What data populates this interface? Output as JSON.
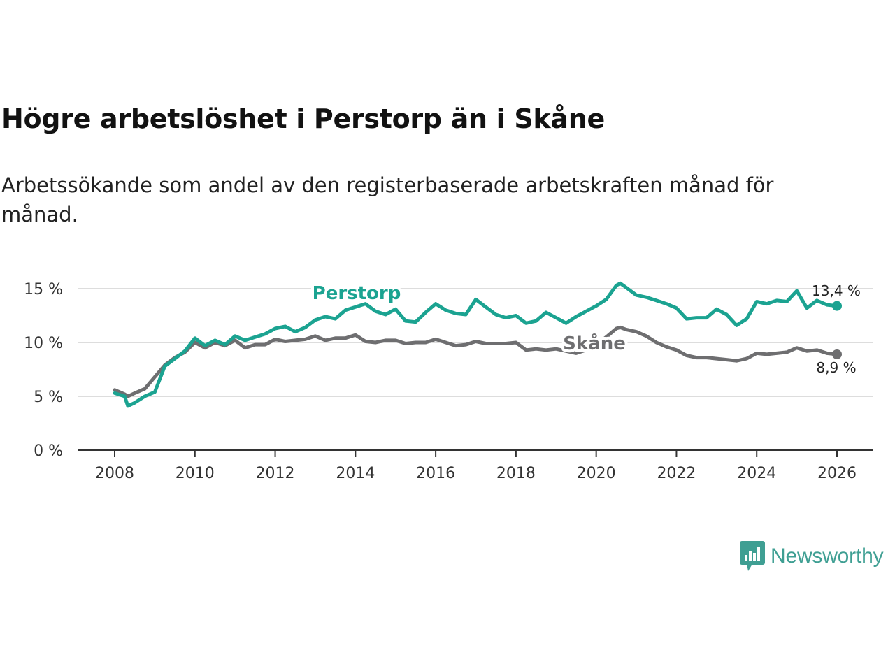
{
  "title": "Högre arbetslöshet i Perstorp än i Skåne",
  "subtitle": "Arbetssökande som andel av den registerbaserade arbetskraften månad för månad.",
  "brand": {
    "name": "Newsworthy",
    "icon": "newsworthy-logo-icon"
  },
  "colors": {
    "perstorp": "#1ba391",
    "skane": "#6e6e70",
    "grid": "#dddddd",
    "axis": "#333333"
  },
  "chart_data": {
    "type": "line",
    "title": "Högre arbetslöshet i Perstorp än i Skåne",
    "xlabel": "",
    "ylabel": "",
    "xlim": [
      2008,
      2026
    ],
    "ylim": [
      0,
      15
    ],
    "y_ticks": [
      0,
      5,
      10,
      15
    ],
    "y_tick_labels": [
      "0 %",
      "5 %",
      "10 %",
      "15 %"
    ],
    "x_ticks": [
      2008,
      2010,
      2012,
      2014,
      2016,
      2018,
      2020,
      2022,
      2024,
      2026
    ],
    "x_tick_labels": [
      "2008",
      "2010",
      "2012",
      "2014",
      "2016",
      "2018",
      "2020",
      "2022",
      "2024",
      "2026"
    ],
    "series": [
      {
        "name": "Perstorp",
        "color": "#1ba391",
        "end_label": "13,4 %",
        "x": [
          2008.0,
          2008.25,
          2008.33,
          2008.5,
          2008.75,
          2009.0,
          2009.25,
          2009.5,
          2009.75,
          2010.0,
          2010.25,
          2010.5,
          2010.75,
          2011.0,
          2011.25,
          2011.5,
          2011.75,
          2012.0,
          2012.25,
          2012.5,
          2012.75,
          2013.0,
          2013.25,
          2013.5,
          2013.75,
          2014.0,
          2014.25,
          2014.5,
          2014.75,
          2015.0,
          2015.25,
          2015.5,
          2015.75,
          2016.0,
          2016.25,
          2016.5,
          2016.75,
          2017.0,
          2017.25,
          2017.5,
          2017.75,
          2018.0,
          2018.25,
          2018.5,
          2018.75,
          2019.0,
          2019.25,
          2019.5,
          2019.75,
          2020.0,
          2020.25,
          2020.5,
          2020.6,
          2020.75,
          2021.0,
          2021.25,
          2021.5,
          2021.75,
          2022.0,
          2022.25,
          2022.5,
          2022.75,
          2023.0,
          2023.25,
          2023.5,
          2023.75,
          2024.0,
          2024.25,
          2024.5,
          2024.75,
          2025.0,
          2025.25,
          2025.5,
          2025.75,
          2026.0
        ],
        "values": [
          5.3,
          5.0,
          4.1,
          4.4,
          5.0,
          5.4,
          7.8,
          8.5,
          9.2,
          10.4,
          9.7,
          10.2,
          9.8,
          10.6,
          10.2,
          10.5,
          10.8,
          11.3,
          11.5,
          11.0,
          11.4,
          12.1,
          12.4,
          12.2,
          13.0,
          13.3,
          13.6,
          12.9,
          12.6,
          13.1,
          12.0,
          11.9,
          12.8,
          13.6,
          13.0,
          12.7,
          12.6,
          14.0,
          13.3,
          12.6,
          12.3,
          12.5,
          11.8,
          12.0,
          12.8,
          12.3,
          11.8,
          12.4,
          12.9,
          13.4,
          14.0,
          15.3,
          15.5,
          15.1,
          14.4,
          14.2,
          13.9,
          13.6,
          13.2,
          12.2,
          12.3,
          12.3,
          13.1,
          12.6,
          11.6,
          12.2,
          13.8,
          13.6,
          13.9,
          13.8,
          14.8,
          13.2,
          13.9,
          13.5,
          13.4
        ]
      },
      {
        "name": "Skåne",
        "color": "#6e6e70",
        "end_label": "8,9 %",
        "x": [
          2008.0,
          2008.25,
          2008.33,
          2008.5,
          2008.75,
          2009.0,
          2009.25,
          2009.5,
          2009.75,
          2010.0,
          2010.25,
          2010.5,
          2010.75,
          2011.0,
          2011.25,
          2011.5,
          2011.75,
          2012.0,
          2012.25,
          2012.5,
          2012.75,
          2013.0,
          2013.25,
          2013.5,
          2013.75,
          2014.0,
          2014.25,
          2014.5,
          2014.75,
          2015.0,
          2015.25,
          2015.5,
          2015.75,
          2016.0,
          2016.25,
          2016.5,
          2016.75,
          2017.0,
          2017.25,
          2017.5,
          2017.75,
          2018.0,
          2018.25,
          2018.5,
          2018.75,
          2019.0,
          2019.25,
          2019.5,
          2019.75,
          2020.0,
          2020.25,
          2020.5,
          2020.6,
          2020.75,
          2021.0,
          2021.25,
          2021.5,
          2021.75,
          2022.0,
          2022.25,
          2022.5,
          2022.75,
          2023.0,
          2023.25,
          2023.5,
          2023.75,
          2024.0,
          2024.25,
          2024.5,
          2024.75,
          2025.0,
          2025.25,
          2025.5,
          2025.75,
          2026.0
        ],
        "values": [
          5.6,
          5.2,
          5.0,
          5.3,
          5.7,
          6.8,
          7.9,
          8.6,
          9.1,
          10.0,
          9.5,
          10.0,
          9.7,
          10.2,
          9.5,
          9.8,
          9.8,
          10.3,
          10.1,
          10.2,
          10.3,
          10.6,
          10.2,
          10.4,
          10.4,
          10.7,
          10.1,
          10.0,
          10.2,
          10.2,
          9.9,
          10.0,
          10.0,
          10.3,
          10.0,
          9.7,
          9.8,
          10.1,
          9.9,
          9.9,
          9.9,
          10.0,
          9.3,
          9.4,
          9.3,
          9.4,
          9.2,
          9.0,
          9.3,
          9.8,
          10.5,
          11.3,
          11.4,
          11.2,
          11.0,
          10.6,
          10.0,
          9.6,
          9.3,
          8.8,
          8.6,
          8.6,
          8.5,
          8.4,
          8.3,
          8.5,
          9.0,
          8.9,
          9.0,
          9.1,
          9.5,
          9.2,
          9.3,
          9.0,
          8.9
        ]
      }
    ],
    "grid": true,
    "legend": "inline labels"
  }
}
